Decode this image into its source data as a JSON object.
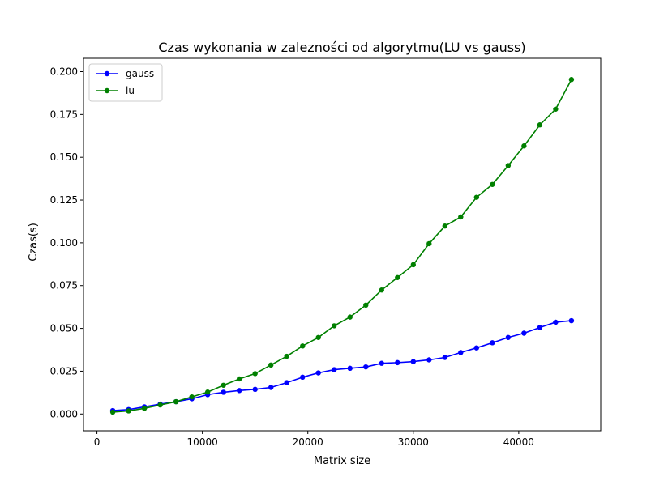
{
  "chart_data": {
    "type": "line",
    "title": "Czas wykonania w zalezności od algorytmu(LU vs gauss)",
    "xlabel": "Matrix size",
    "ylabel": "Czas(s)",
    "xlim": [
      -1275,
      47775
    ],
    "ylim": [
      -0.0098,
      0.2078
    ],
    "xticks": [
      0,
      10000,
      20000,
      30000,
      40000
    ],
    "xtick_labels": [
      "0",
      "10000",
      "20000",
      "30000",
      "40000"
    ],
    "yticks": [
      0,
      0.025,
      0.05,
      0.075,
      0.1,
      0.125,
      0.15,
      0.175,
      0.2
    ],
    "ytick_labels": [
      "0.000",
      "0.025",
      "0.050",
      "0.075",
      "0.100",
      "0.125",
      "0.150",
      "0.175",
      "0.200"
    ],
    "grid": false,
    "legend_position": "top-left",
    "x": [
      1500,
      3000,
      4500,
      6000,
      7500,
      9000,
      10500,
      12000,
      13500,
      15000,
      16500,
      18000,
      19500,
      21000,
      22500,
      24000,
      25500,
      27000,
      28500,
      30000,
      31500,
      33000,
      34500,
      36000,
      37500,
      39000,
      40500,
      42000,
      43500,
      45000
    ],
    "series": [
      {
        "name": "gauss",
        "color": "#0000ff",
        "values": [
          0.002,
          0.0026,
          0.0042,
          0.0058,
          0.0072,
          0.0089,
          0.0113,
          0.0127,
          0.0137,
          0.0144,
          0.0155,
          0.0183,
          0.0215,
          0.024,
          0.0259,
          0.0267,
          0.0275,
          0.0296,
          0.03,
          0.0306,
          0.0316,
          0.033,
          0.0359,
          0.0386,
          0.0416,
          0.0447,
          0.0472,
          0.0505,
          0.0536,
          0.0545
        ]
      },
      {
        "name": "lu",
        "color": "#008000",
        "values": [
          0.0011,
          0.0018,
          0.0033,
          0.0053,
          0.0072,
          0.01,
          0.0128,
          0.0168,
          0.0205,
          0.0236,
          0.0286,
          0.0337,
          0.0397,
          0.0447,
          0.0515,
          0.0566,
          0.0636,
          0.0724,
          0.0797,
          0.0872,
          0.0995,
          0.1098,
          0.1151,
          0.1266,
          0.1341,
          0.1451,
          0.1566,
          0.1689,
          0.1781,
          0.1954
        ]
      }
    ]
  }
}
